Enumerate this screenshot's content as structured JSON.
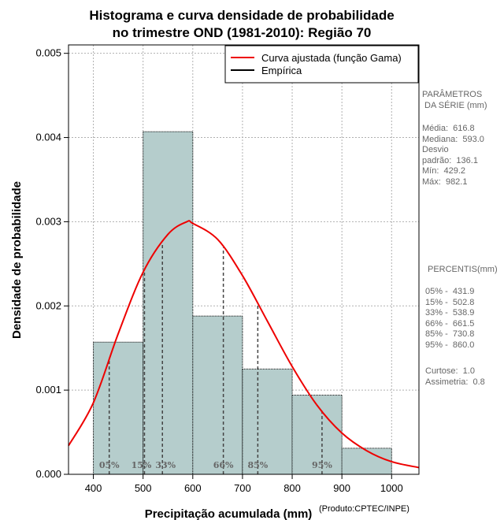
{
  "chart_data": {
    "type": "bar",
    "title_line1": "Histograma e curva densidade de probabilidade",
    "title_line2": "no trimestre OND (1981-2010): Região 70",
    "xlabel": "Precipitação acumulada (mm)",
    "ylabel": "Densidade de probabilidade",
    "xlim": [
      350,
      1055
    ],
    "ylim": [
      0,
      0.0051
    ],
    "x_ticks": [
      400,
      500,
      600,
      700,
      800,
      900,
      1000
    ],
    "y_ticks": [
      "0.000",
      "0.001",
      "0.002",
      "0.003",
      "0.004",
      "0.005"
    ],
    "bins": [
      {
        "from": 400,
        "to": 500,
        "density": 0.00157
      },
      {
        "from": 500,
        "to": 600,
        "density": 0.00407
      },
      {
        "from": 600,
        "to": 700,
        "density": 0.00188
      },
      {
        "from": 700,
        "to": 800,
        "density": 0.00125
      },
      {
        "from": 800,
        "to": 900,
        "density": 0.00094
      },
      {
        "from": 900,
        "to": 1000,
        "density": 0.00031
      }
    ],
    "bar_color": "#b5cdcc",
    "curve_color": "#ee0000",
    "curve": {
      "label": "Curva ajustada (função Gama)",
      "mode": 588,
      "peak_density": 0.003,
      "points": [
        [
          350,
          0.00034
        ],
        [
          400,
          0.00085
        ],
        [
          450,
          0.00167
        ],
        [
          500,
          0.0024
        ],
        [
          550,
          0.00285
        ],
        [
          588,
          0.003
        ],
        [
          600,
          0.00298
        ],
        [
          650,
          0.00279
        ],
        [
          700,
          0.00236
        ],
        [
          750,
          0.00182
        ],
        [
          800,
          0.00128
        ],
        [
          850,
          0.00082
        ],
        [
          900,
          0.00049
        ],
        [
          950,
          0.00028
        ],
        [
          1000,
          0.00015
        ],
        [
          1055,
          8e-05
        ]
      ]
    },
    "empirical_label": "Empírica",
    "percentiles": [
      {
        "label": "05%",
        "value": 431.9
      },
      {
        "label": "15%",
        "value": 502.8
      },
      {
        "label": "33%",
        "value": 538.9
      },
      {
        "label": "66%",
        "value": 661.5
      },
      {
        "label": "85%",
        "value": 730.8
      },
      {
        "label": "95%",
        "value": 860.0
      }
    ]
  },
  "side_panel": {
    "params_title": "PARÂMETROS\n DA SÉRIE (mm)",
    "params_body": "Média:  616.8\nMediana:  593.0\nDesvio\npadrão:  136.1\nMín:  429.2\nMáx:  982.1",
    "percentis_title": "PERCENTIS(mm)",
    "percentis_body": "05% -  431.9\n15% -  502.8\n33% -  538.9\n66% -  661.5\n85% -  730.8\n95% -  860.0",
    "stats_body": "Curtose:  1.0\nAssimetria:  0.8"
  },
  "credit": "(Produto:CPTEC/INPE)"
}
